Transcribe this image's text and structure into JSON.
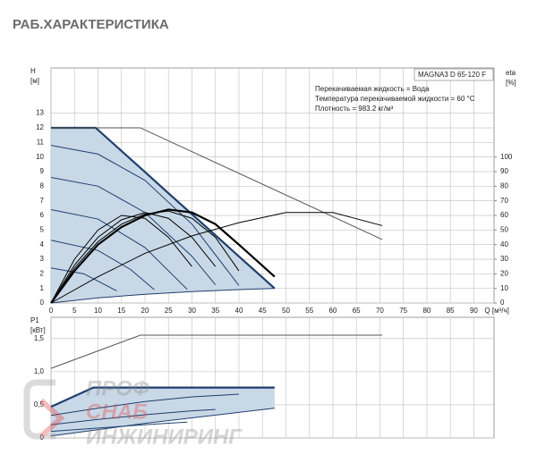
{
  "title": "РАБ.ХАРАКТЕРИСТИКА",
  "watermark": [
    "ПРОФ",
    "СНАБ",
    "ИНЖИНИРИНГ"
  ],
  "chart_data": [
    {
      "type": "line",
      "y_label": [
        "H",
        "[м]"
      ],
      "y2_label": [
        "eta",
        "[%]"
      ],
      "x_label": "Q [м³/ч]",
      "box_label": "MAGNA3 D 65-120 F",
      "annotations": [
        "Перекачиваемая жидкость = Вода",
        "Температура перекачиваемой жидкости = 60 °C",
        "Плотность = 983.2 кг/м³"
      ],
      "xlim": [
        0,
        94.3
      ],
      "ylim": [
        0,
        16.1
      ],
      "y2lim": [
        0,
        161
      ],
      "xticks": [
        0,
        5,
        10,
        15,
        20,
        25,
        30,
        35,
        40,
        45,
        50,
        55,
        60,
        65,
        70,
        75,
        80,
        85,
        90
      ],
      "yticks": [
        0,
        1,
        2,
        3,
        4,
        5,
        6,
        7,
        8,
        9,
        10,
        11,
        12,
        13
      ],
      "y2ticks": [
        0,
        10,
        20,
        30,
        40,
        50,
        60,
        70,
        80,
        90,
        100
      ],
      "grid": true,
      "show_xtick_labels": true,
      "fill_between": [
        0,
        1
      ],
      "fill_color": "#c9d8e6",
      "series": [
        {
          "color": "#1f3f6e",
          "weight": "bold",
          "x": [
            0,
            9.5,
            20,
            25,
            30,
            35,
            40,
            44,
            47.6
          ],
          "values": [
            12,
            12,
            8.97,
            7.52,
            6.08,
            4.64,
            3.19,
            2.04,
            1.0
          ]
        },
        {
          "color": "#1f3f6e",
          "weight": "normal",
          "x": [
            0,
            10,
            20,
            30,
            40,
            47.6
          ],
          "values": [
            0,
            0.35,
            0.6,
            0.78,
            0.92,
            1.0
          ]
        },
        {
          "color": "#555555",
          "weight": "normal",
          "x": [
            0,
            19,
            70.5
          ],
          "values": [
            12,
            12,
            4.35
          ]
        },
        {
          "color": "#1f3f6e",
          "weight": "normal",
          "x": [
            0,
            10,
            20,
            30,
            40
          ],
          "values": [
            10.8,
            10.2,
            8.4,
            5.4,
            1.2
          ]
        },
        {
          "color": "#1f3f6e",
          "weight": "normal",
          "x": [
            0,
            10,
            20,
            30,
            35
          ],
          "values": [
            8.6,
            8.0,
            6.2,
            3.2,
            1.25
          ]
        },
        {
          "color": "#1f3f6e",
          "weight": "normal",
          "x": [
            0,
            10,
            20,
            29
          ],
          "values": [
            6.4,
            5.75,
            3.8,
            0.93
          ]
        },
        {
          "color": "#1f3f6e",
          "weight": "normal",
          "x": [
            0,
            10,
            17,
            22
          ],
          "values": [
            4.3,
            3.6,
            2.28,
            0.91
          ]
        },
        {
          "color": "#1f3f6e",
          "weight": "normal",
          "x": [
            0,
            7,
            14
          ],
          "values": [
            2.4,
            2.0,
            0.83
          ]
        },
        {
          "color": "#000000",
          "weight": "bold",
          "axis": "y2",
          "x": [
            0,
            5,
            10,
            15,
            20,
            25,
            30,
            35,
            40,
            47.6
          ],
          "values": [
            0,
            22,
            40,
            52,
            60,
            64,
            62,
            54,
            40,
            18
          ]
        },
        {
          "color": "#000000",
          "weight": "normal",
          "axis": "y2",
          "x": [
            0,
            10,
            20,
            30,
            40,
            50,
            60,
            70.5
          ],
          "values": [
            0,
            18,
            34,
            46,
            55,
            62,
            62,
            53
          ]
        },
        {
          "color": "#000000",
          "weight": "normal",
          "axis": "y2",
          "x": [
            0,
            5,
            10,
            15,
            20,
            25,
            30,
            35,
            40
          ],
          "values": [
            0,
            24,
            42,
            54,
            61,
            63,
            58,
            45,
            22
          ]
        },
        {
          "color": "#000000",
          "weight": "normal",
          "axis": "y2",
          "x": [
            0,
            5,
            10,
            15,
            20,
            25,
            30,
            35
          ],
          "values": [
            0,
            26,
            45,
            57,
            62,
            58,
            45,
            25
          ]
        },
        {
          "color": "#000000",
          "weight": "normal",
          "axis": "y2",
          "x": [
            0,
            5,
            10,
            15,
            20,
            25,
            30
          ],
          "values": [
            0,
            30,
            50,
            60,
            58,
            45,
            25
          ]
        }
      ]
    },
    {
      "type": "line",
      "y_label": [
        "P1",
        "[кВт]"
      ],
      "xlim": [
        0,
        94.3
      ],
      "ylim": [
        0,
        1.82
      ],
      "xticks": [
        0,
        5,
        10,
        15,
        20,
        25,
        30,
        35,
        40,
        45,
        50,
        55,
        60,
        65,
        70,
        75,
        80,
        85,
        90
      ],
      "yticks": [
        0,
        {
          "value": 0.5,
          "label": "0,5"
        },
        {
          "value": 1.0,
          "label": "1,0"
        },
        {
          "value": 1.5,
          "label": "1,5"
        }
      ],
      "grid": true,
      "show_xtick_labels": false,
      "fill_between": [
        0,
        1
      ],
      "fill_color": "#c9d8e6",
      "series": [
        {
          "color": "#1f3f6e",
          "weight": "bold",
          "x": [
            0,
            9,
            20,
            30,
            40,
            47.6
          ],
          "values": [
            0.47,
            0.76,
            0.76,
            0.76,
            0.76,
            0.76
          ]
        },
        {
          "color": "#1f3f6e",
          "weight": "normal",
          "x": [
            0,
            20,
            47.6
          ],
          "values": [
            0.03,
            0.22,
            0.45
          ]
        },
        {
          "color": "#555555",
          "weight": "normal",
          "x": [
            0,
            19,
            70.5
          ],
          "values": [
            1.05,
            1.55,
            1.55
          ]
        },
        {
          "color": "#1f3f6e",
          "weight": "normal",
          "x": [
            0,
            10,
            20,
            30,
            40
          ],
          "values": [
            0.34,
            0.45,
            0.55,
            0.62,
            0.66
          ]
        },
        {
          "color": "#1f3f6e",
          "weight": "normal",
          "x": [
            0,
            10,
            20,
            30,
            35
          ],
          "values": [
            0.2,
            0.28,
            0.35,
            0.41,
            0.43
          ]
        },
        {
          "color": "#1f3f6e",
          "weight": "normal",
          "x": [
            0,
            10,
            20,
            29
          ],
          "values": [
            0.1,
            0.15,
            0.2,
            0.24
          ]
        }
      ]
    }
  ]
}
